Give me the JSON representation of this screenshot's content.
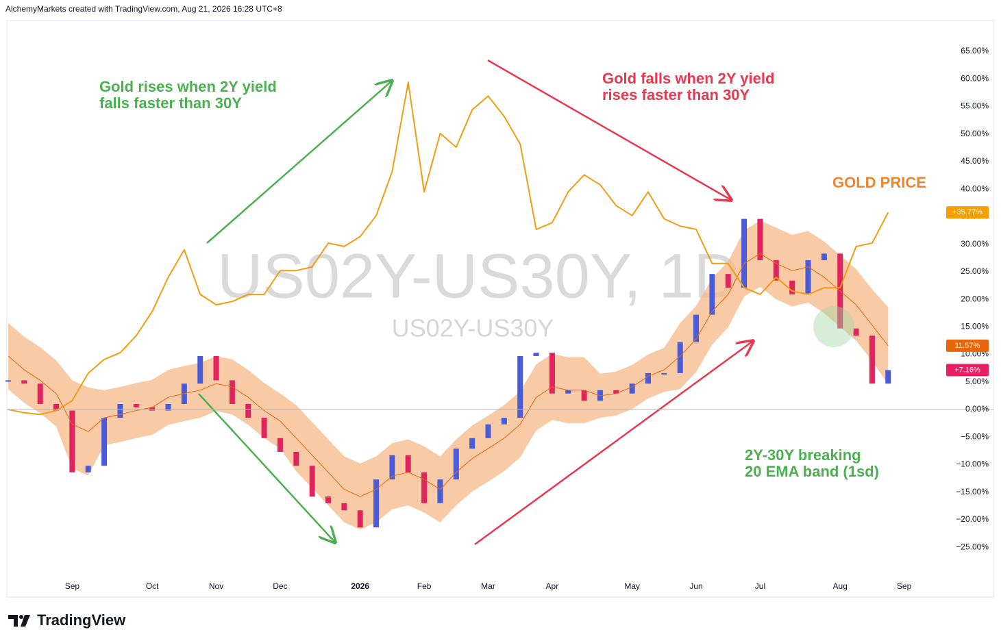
{
  "header": "AlchemyMarkets created with TradingView.com, Aug 21, 2026 16:28 UTC+8",
  "footer": "TradingView",
  "chart_data": {
    "type": "combo",
    "watermark": "US02Y-US30Y, 1D",
    "watermark_sub": "US02Y-US30Y",
    "annotations": [
      {
        "lines": [
          "Gold rises when 2Y yield",
          "falls faster than 30Y"
        ],
        "color": "#4caf50"
      },
      {
        "lines": [
          "Gold falls when 2Y yield",
          "rises faster than 30Y"
        ],
        "color": "#e8384f"
      },
      {
        "lines": [
          "GOLD PRICE"
        ],
        "color": "#f0852a"
      },
      {
        "lines": [
          "2Y-30Y breaking",
          "20 EMA band (1sd)"
        ],
        "color": "#4caf50"
      }
    ],
    "categories": [
      null,
      null,
      null,
      null,
      "Sep",
      null,
      null,
      null,
      null,
      "Oct",
      null,
      null,
      null,
      "Nov",
      null,
      null,
      null,
      "Dec",
      null,
      null,
      null,
      null,
      "2026",
      null,
      null,
      null,
      "Feb",
      null,
      null,
      null,
      "Mar",
      null,
      null,
      null,
      "Apr",
      null,
      null,
      null,
      null,
      "May",
      null,
      null,
      null,
      "Jun",
      null,
      null,
      null,
      "Jul",
      null,
      null,
      null,
      null,
      "Aug",
      null,
      null,
      null,
      "Sep"
    ],
    "band": {
      "color": "#f7b888",
      "upper": [
        15.7,
        13.2,
        11.3,
        8.9,
        5.3,
        4,
        3.5,
        4.1,
        4.8,
        5.4,
        7.2,
        7.9,
        8.5,
        9.7,
        9.1,
        7.2,
        4.8,
        2.9,
        0.8,
        -2.3,
        -5.4,
        -8.5,
        -9.8,
        -8.5,
        -6.1,
        -5.4,
        -6.7,
        -8.5,
        -5.4,
        -2.9,
        -1.1,
        0.8,
        3.3,
        8.2,
        10.1,
        9.5,
        9.5,
        6.5,
        6.9,
        8.1,
        10,
        11.2,
        15.7,
        18.8,
        23.8,
        26.9,
        32.5,
        34.3,
        33,
        31.7,
        32.4,
        30.5,
        28,
        25.5,
        21.8,
        18.57,
        null
      ],
      "lower": [
        3.7,
        1.2,
        -0.7,
        -3.1,
        -10.7,
        -12,
        -6.5,
        -5.9,
        -5.2,
        -4.6,
        -2.8,
        -2.1,
        -1.5,
        -0.3,
        -0.9,
        -2.8,
        -5.2,
        -7.1,
        -11.2,
        -14.3,
        -17.4,
        -20.5,
        -21.8,
        -20.5,
        -18.1,
        -17.4,
        -18.7,
        -20.5,
        -17.4,
        -14.9,
        -13.1,
        -11.2,
        -8.7,
        -3.8,
        -1.9,
        -2.5,
        -2.5,
        -1.5,
        -1.1,
        0.1,
        2,
        3.2,
        3.7,
        6.8,
        11.8,
        14.9,
        20.5,
        22.3,
        20,
        18.7,
        19.4,
        17.5,
        15,
        12.5,
        8.8,
        4.57,
        null
      ]
    },
    "series": [
      {
        "type": "line",
        "color": "#e8650a",
        "width": 1,
        "values": [
          9.7,
          7.2,
          5.3,
          2.9,
          -2.7,
          -4,
          -1.5,
          -0.9,
          -0.2,
          0.4,
          2.2,
          2.9,
          3.5,
          4.7,
          4.1,
          2.2,
          -0.2,
          -2.1,
          -5.2,
          -8.3,
          -11.4,
          -14.5,
          -15.8,
          -14.5,
          -12.1,
          -11.4,
          -12.7,
          -14.5,
          -11.4,
          -8.9,
          -7.1,
          -5.2,
          -2.7,
          2.2,
          4.1,
          3.5,
          3.5,
          2.5,
          2.9,
          4.1,
          6,
          7.2,
          9.7,
          12.8,
          17.8,
          20.9,
          26.5,
          28.3,
          26.5,
          25.2,
          25.9,
          24,
          21.5,
          19,
          15.3,
          11.57,
          null
        ]
      },
      {
        "type": "candlestick",
        "up_color": "#4a5bd8",
        "down_color": "#e0245e",
        "values": [
          5.3,
          4.7,
          1,
          -0.2,
          -11.4,
          -10.2,
          -1.5,
          1,
          0.4,
          -0.2,
          1,
          4.7,
          9.7,
          5.3,
          1,
          -1.5,
          -5.2,
          -7.7,
          -10.2,
          -15.8,
          -17,
          -18.3,
          -21.4,
          -12.7,
          -8.3,
          -11.4,
          -17,
          -12.7,
          -7.1,
          -5.2,
          -2.7,
          -1.5,
          9.7,
          10.3,
          2.9,
          3.5,
          1.6,
          3.5,
          2.9,
          4.7,
          6.6,
          6.6,
          12.2,
          17.2,
          24.6,
          22.1,
          34.6,
          27.1,
          23.4,
          20.9,
          27.1,
          28.3,
          14.7,
          13.4,
          4.7,
          7.16,
          null
        ]
      },
      {
        "type": "line",
        "color": "#f39c12",
        "width": 2,
        "values": [
          0,
          -0.6,
          -0.9,
          -0.2,
          1.6,
          6.6,
          9.1,
          10.3,
          13.4,
          17.8,
          24,
          29,
          20.9,
          19,
          19.6,
          20.9,
          20.9,
          25.2,
          25.2,
          25.9,
          30.2,
          29.6,
          31.4,
          35.2,
          43.2,
          59.4,
          39.5,
          50.1,
          47.6,
          54.4,
          56.9,
          53.2,
          48.2,
          32.7,
          33.9,
          39.5,
          42.6,
          40.8,
          37,
          35.2,
          39.5,
          34.6,
          33.3,
          32.7,
          26.5,
          26.5,
          22.1,
          20.9,
          24,
          21.5,
          20.9,
          22.1,
          22.1,
          29.6,
          30.2,
          35.77,
          null
        ]
      }
    ],
    "price_labels": [
      {
        "value": 35.77,
        "label": "+35.77%",
        "color": "#f5a000"
      },
      {
        "value": 11.57,
        "label": "11.57%",
        "color": "#e8650a"
      },
      {
        "value": 7.16,
        "label": "+7.16%",
        "color": "#e91e63"
      }
    ],
    "ylim": [
      -30.7,
      70.6
    ],
    "yticks": [
      {
        "value": 65,
        "label": "65.00%"
      },
      {
        "value": 60,
        "label": "60.00%"
      },
      {
        "value": 55,
        "label": "55.00%"
      },
      {
        "value": 50,
        "label": "50.00%"
      },
      {
        "value": 45,
        "label": "45.00%"
      },
      {
        "value": 40,
        "label": "40.00%"
      },
      {
        "value": 35,
        "label": "35.00%"
      },
      {
        "value": 30,
        "label": "30.00%"
      },
      {
        "value": 25,
        "label": "25.00%"
      },
      {
        "value": 20,
        "label": "20.00%"
      },
      {
        "value": 15,
        "label": "15.00%"
      },
      {
        "value": 10,
        "label": "10.00%"
      },
      {
        "value": 5,
        "label": "5.00%"
      },
      {
        "value": 0,
        "label": "0.00%"
      },
      {
        "value": -5,
        "label": "−5.00%"
      },
      {
        "value": -10,
        "label": "−10.00%"
      },
      {
        "value": -15,
        "label": "−15.00%"
      },
      {
        "value": -20,
        "label": "−20.00%"
      },
      {
        "value": -25,
        "label": "−25.00%"
      }
    ],
    "zero_line": true
  }
}
